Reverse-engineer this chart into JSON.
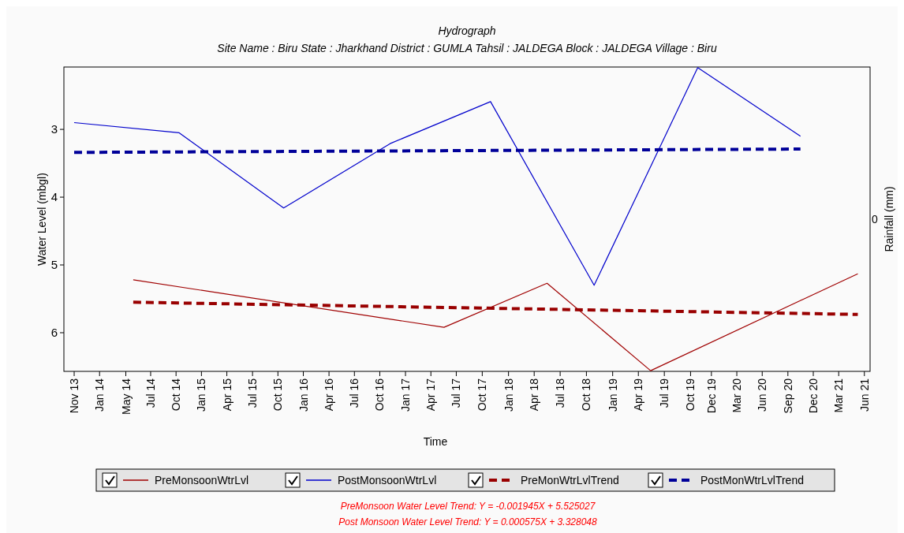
{
  "chart_data": {
    "type": "line",
    "title": "Hydrograph",
    "subtitle": "Site Name : Biru  State : Jharkhand District : GUMLA  Tahsil : JALDEGA  Block : JALDEGA Village : Biru",
    "xlabel": "Time",
    "ylabel": "Water Level (mbgl)",
    "y2label": "Rainfall (mm)",
    "xlim": [
      "2013-09-26",
      "2021-06-21"
    ],
    "xticks": [
      {
        "value": "2013-11-01",
        "label": "Nov 13"
      },
      {
        "value": "2014-01-29",
        "label": "Jan 14"
      },
      {
        "value": "2014-05-01",
        "label": "May 14"
      },
      {
        "value": "2014-07-27",
        "label": "Jul 14"
      },
      {
        "value": "2014-10-24",
        "label": "Oct 14"
      },
      {
        "value": "2015-01-21",
        "label": "Jan 15"
      },
      {
        "value": "2015-04-20",
        "label": "Apr 15"
      },
      {
        "value": "2015-07-19",
        "label": "Jul 15"
      },
      {
        "value": "2015-10-16",
        "label": "Oct 15"
      },
      {
        "value": "2016-01-13",
        "label": "Jan 16"
      },
      {
        "value": "2016-04-12",
        "label": "Apr 16"
      },
      {
        "value": "2016-07-10",
        "label": "Jul 16"
      },
      {
        "value": "2016-10-07",
        "label": "Oct 16"
      },
      {
        "value": "2017-01-05",
        "label": "Jan 17"
      },
      {
        "value": "2017-04-04",
        "label": "Apr 17"
      },
      {
        "value": "2017-07-02",
        "label": "Jul 17"
      },
      {
        "value": "2017-10-01",
        "label": "Oct 17"
      },
      {
        "value": "2018-01-01",
        "label": "Jan 18"
      },
      {
        "value": "2018-04-01",
        "label": "Apr 18"
      },
      {
        "value": "2018-07-01",
        "label": "Jul 18"
      },
      {
        "value": "2018-10-01",
        "label": "Oct 18"
      },
      {
        "value": "2019-01-01",
        "label": "Jan 19"
      },
      {
        "value": "2019-04-01",
        "label": "Apr 19"
      },
      {
        "value": "2019-07-01",
        "label": "Jul 19"
      },
      {
        "value": "2019-10-01",
        "label": "Oct 19"
      },
      {
        "value": "2019-12-13",
        "label": "Dec 19"
      },
      {
        "value": "2020-03-11",
        "label": "Mar 20"
      },
      {
        "value": "2020-06-08",
        "label": "Jun 20"
      },
      {
        "value": "2020-09-06",
        "label": "Sep 20"
      },
      {
        "value": "2020-12-04",
        "label": "Dec 20"
      },
      {
        "value": "2021-03-03",
        "label": "Mar 21"
      },
      {
        "value": "2021-06-01",
        "label": "Jun 21"
      }
    ],
    "ylim": [
      6.57,
      2.08
    ],
    "yticks": [
      3,
      4,
      5,
      6
    ],
    "grid": false,
    "legend": "bottom",
    "series": [
      {
        "name": "PreMonsoonWtrLvl",
        "color": "#a00000",
        "line_style": "solid",
        "x": [
          "2014-05-27",
          "2017-05-20",
          "2018-05-16",
          "2019-05-14",
          "2021-05-09"
        ],
        "values": [
          5.22,
          5.92,
          5.27,
          6.56,
          5.13
        ]
      },
      {
        "name": "PostMonsoonWtrLvl",
        "color": "#0000cc",
        "line_style": "solid",
        "x": [
          "2013-11-01",
          "2014-11-04",
          "2015-11-05",
          "2016-11-12",
          "2017-10-30",
          "2018-10-28",
          "2019-10-26",
          "2020-10-20"
        ],
        "values": [
          2.9,
          3.05,
          4.16,
          3.21,
          2.59,
          5.3,
          2.09,
          3.1
        ]
      },
      {
        "name": "PreMonWtrLvlTrend",
        "color": "#990000",
        "line_style": "dashed",
        "x": [
          "2014-05-27",
          "2021-05-09"
        ],
        "values": [
          5.55,
          5.73
        ]
      },
      {
        "name": "PostMonWtrLvlTrend",
        "color": "#000099",
        "line_style": "dashed",
        "x": [
          "2013-11-01",
          "2020-10-20"
        ],
        "values": [
          3.34,
          3.29
        ]
      }
    ],
    "annotations": [
      "0",
      "PreMonsoon Water Level Trend: Y = -0.001945X + 5.525027",
      "Post Monsoon Water Level Trend: Y = 0.000575X + 3.328048"
    ]
  }
}
